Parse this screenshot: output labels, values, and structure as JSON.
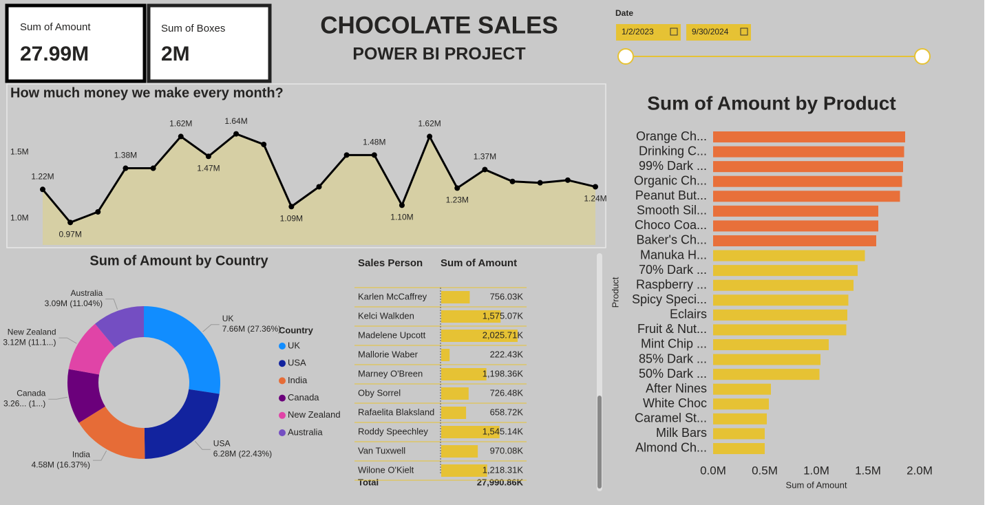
{
  "header": {
    "title": "CHOCOLATE SALES",
    "subtitle": "POWER BI PROJECT"
  },
  "cards": [
    {
      "label": "Sum of Amount",
      "value": "27.99M"
    },
    {
      "label": "Sum of Boxes",
      "value": "2M"
    }
  ],
  "slicer": {
    "label": "Date",
    "start": "1/2/2023",
    "end": "9/30/2024"
  },
  "table": {
    "columns": [
      "Sales Person",
      "Sum of Amount"
    ],
    "rows": [
      {
        "name": "Karlen McCaffrey",
        "amount": 756.03,
        "label": "756.03K"
      },
      {
        "name": "Kelci Walkden",
        "amount": 1575.07,
        "label": "1,575.07K"
      },
      {
        "name": "Madelene Upcott",
        "amount": 2025.71,
        "label": "2,025.71K"
      },
      {
        "name": "Mallorie Waber",
        "amount": 222.43,
        "label": "222.43K"
      },
      {
        "name": "Marney O'Breen",
        "amount": 1198.36,
        "label": "1,198.36K"
      },
      {
        "name": "Oby Sorrel",
        "amount": 726.48,
        "label": "726.48K"
      },
      {
        "name": "Rafaelita Blaksland",
        "amount": 658.72,
        "label": "658.72K"
      },
      {
        "name": "Roddy Speechley",
        "amount": 1545.14,
        "label": "1,545.14K"
      },
      {
        "name": "Van Tuxwell",
        "amount": 970.08,
        "label": "970.08K"
      },
      {
        "name": "Wilone O'Kielt",
        "amount": 1218.31,
        "label": "1,218.31K"
      }
    ],
    "total": {
      "name": "Total",
      "label": "27,990.86K"
    },
    "bar_color": "#e6c234"
  },
  "chart_data": [
    {
      "type": "area",
      "title": "How much money we make every month?",
      "categories": [
        null,
        null,
        null,
        null,
        null,
        null,
        null,
        null,
        null,
        null,
        null,
        null,
        null,
        null,
        null,
        null,
        null,
        null,
        null,
        null,
        null
      ],
      "values": [
        1220000,
        970000,
        1050000,
        1380000,
        1380000,
        1620000,
        1470000,
        1640000,
        1560000,
        1090000,
        1240000,
        1480000,
        1480000,
        1100000,
        1620000,
        1230000,
        1370000,
        1280000,
        1270000,
        1290000,
        1240000
      ],
      "value_labels": [
        "1.22M",
        "0.97M",
        null,
        "1.38M",
        null,
        "1.62M",
        "1.47M",
        "1.64M",
        null,
        "1.09M",
        null,
        null,
        "1.48M",
        "1.10M",
        "1.62M",
        "1.23M",
        "1.37M",
        null,
        null,
        null,
        "1.24M"
      ],
      "color": "#000000",
      "fill": "#d6cfa4",
      "ylim": [
        800000,
        1820000
      ],
      "yticks": [
        {
          "value": 1000000,
          "label": "1.0M"
        },
        {
          "value": 1500000,
          "label": "1.5M"
        }
      ]
    },
    {
      "type": "donut",
      "title": "Sum of Amount by Country",
      "legend_title": "Country",
      "categories": [
        "UK",
        "USA",
        "India",
        "Canada",
        "New Zealand",
        "Australia"
      ],
      "values": [
        7660000,
        6280000,
        4580000,
        3260000,
        3120000,
        3090000
      ],
      "value_labels": [
        "7.66M (27.36%)",
        "6.28M (22.43%)",
        "4.58M (16.37%)",
        "3.26... (1...)",
        "3.12M (11.1...)",
        "3.09M (11.04%)"
      ],
      "colors": [
        "#118dff",
        "#12239e",
        "#e66c37",
        "#6b007b",
        "#e044a7",
        "#744ec2"
      ]
    },
    {
      "type": "hbar",
      "title": "Sum of Amount by Product",
      "xlabel": "Sum of Amount",
      "ylabel": "Product",
      "categories": [
        "Orange Ch...",
        "Drinking C...",
        "99% Dark ...",
        "Organic Ch...",
        "Peanut But...",
        "Smooth Sil...",
        "Choco Coa...",
        "Baker's Ch...",
        "Manuka H...",
        "70% Dark ...",
        "Raspberry ...",
        "Spicy Speci...",
        "Eclairs",
        "Fruit & Nut...",
        "Mint Chip ...",
        "85% Dark ...",
        "50% Dark ...",
        "After Nines",
        "White Choc",
        "Caramel St...",
        "Milk Bars",
        "Almond Ch..."
      ],
      "values": [
        1860000,
        1850000,
        1840000,
        1830000,
        1810000,
        1600000,
        1600000,
        1580000,
        1470000,
        1400000,
        1360000,
        1310000,
        1300000,
        1290000,
        1120000,
        1040000,
        1030000,
        560000,
        540000,
        520000,
        500000,
        500000
      ],
      "colors": [
        "#e8703a",
        "#e8703a",
        "#e8703a",
        "#e8703a",
        "#e8703a",
        "#e8703a",
        "#e8703a",
        "#e8703a",
        "#e6c234",
        "#e6c234",
        "#e6c234",
        "#e6c234",
        "#e6c234",
        "#e6c234",
        "#e6c234",
        "#e6c234",
        "#e6c234",
        "#e6c234",
        "#e6c234",
        "#e6c234",
        "#e6c234",
        "#e6c234"
      ],
      "xlim": [
        0,
        2000000
      ],
      "xticks": [
        {
          "value": 0,
          "label": "0.0M"
        },
        {
          "value": 500000,
          "label": "0.5M"
        },
        {
          "value": 1000000,
          "label": "1.0M"
        },
        {
          "value": 1500000,
          "label": "1.5M"
        },
        {
          "value": 2000000,
          "label": "2.0M"
        }
      ]
    }
  ]
}
